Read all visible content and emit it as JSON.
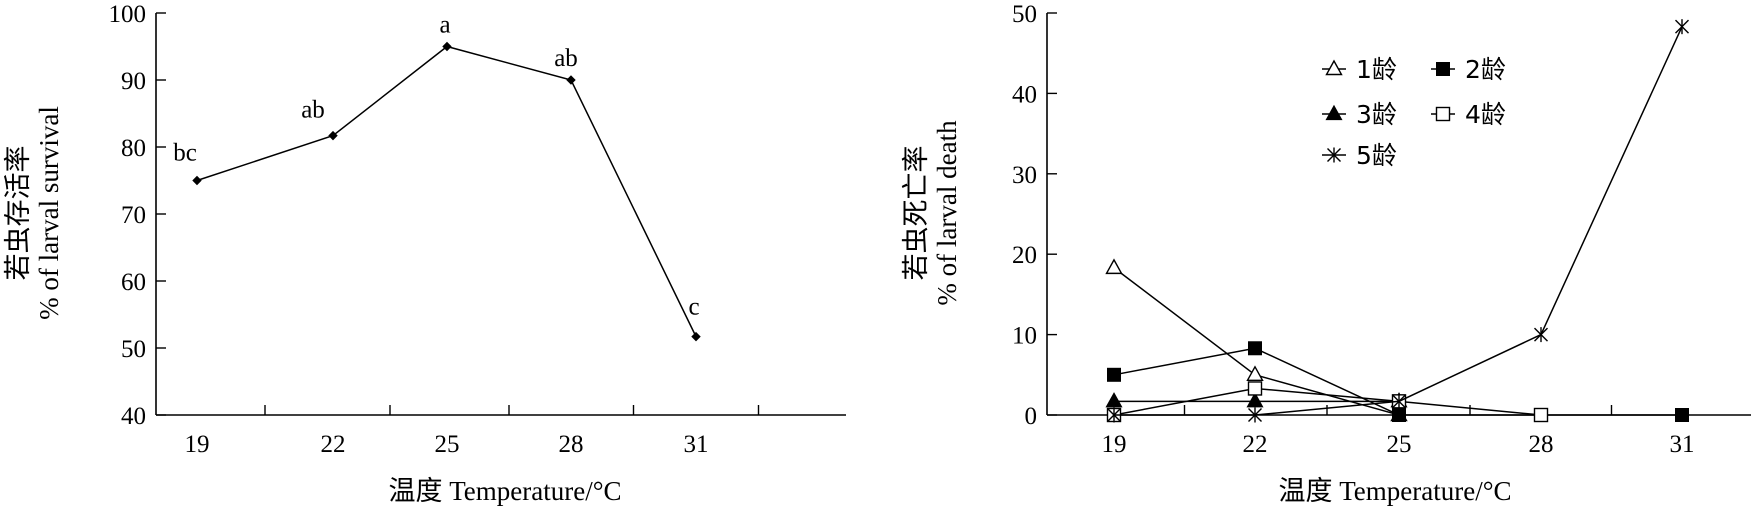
{
  "chart_data": [
    {
      "type": "line",
      "x": [
        19,
        22,
        25,
        28,
        31
      ],
      "series": [
        {
          "values": [
            75,
            81.7,
            95,
            90,
            51.7
          ]
        }
      ],
      "annotations": [
        "bc",
        "ab",
        "a",
        "ab",
        "c"
      ],
      "xlabel": "温度 Temperature/°C",
      "ylabel_cn": "若虫存活率",
      "ylabel_en": "% of larval survival",
      "ylim": [
        40,
        100
      ],
      "yticks": [
        40,
        50,
        60,
        70,
        80,
        90,
        100
      ],
      "xticklabels": [
        "19",
        "22",
        "25",
        "28",
        "31"
      ],
      "grid": false,
      "marker": "diamond"
    },
    {
      "type": "line",
      "x": [
        19,
        22,
        25,
        28,
        31
      ],
      "series": [
        {
          "name": "1龄",
          "marker": "triangle-open",
          "values": [
            18.3,
            5,
            0,
            null,
            null
          ]
        },
        {
          "name": "2龄",
          "marker": "square-filled",
          "values": [
            5,
            8.3,
            0,
            0,
            0
          ]
        },
        {
          "name": "3龄",
          "marker": "triangle-filled",
          "values": [
            1.7,
            1.7,
            1.7,
            null,
            null
          ]
        },
        {
          "name": "4龄",
          "marker": "square-open",
          "values": [
            0,
            3.3,
            1.7,
            0,
            null
          ]
        },
        {
          "name": "5龄",
          "marker": "asterisk",
          "values": [
            0,
            0,
            1.7,
            10,
            48.3
          ]
        }
      ],
      "xlabel": "温度 Temperature/°C",
      "ylabel_cn": "若虫死亡率",
      "ylabel_en": "% of larval death",
      "ylim": [
        0,
        50
      ],
      "yticks": [
        0,
        10,
        20,
        30,
        40,
        50
      ],
      "xticklabels": [
        "19",
        "22",
        "25",
        "28",
        "31"
      ],
      "grid": false,
      "legend_position": "top-center"
    }
  ]
}
